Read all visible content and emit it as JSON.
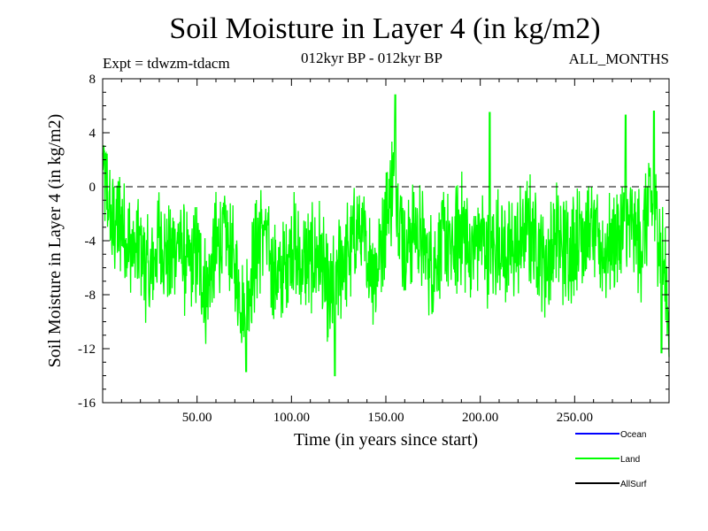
{
  "header": {
    "title": "Soil Moisture in Layer 4 (in kg/m2)",
    "expt": "Expt = tdwzm-tdacm",
    "period": "012kyr BP - 012kyr BP",
    "months": "ALL_MONTHS"
  },
  "colors": {
    "ocean": "#0000ff",
    "land": "#00ff00",
    "allsurf": "#000000",
    "axis": "#000000"
  },
  "chart_data": {
    "type": "line",
    "title": "Soil Moisture in Layer 4 (in kg/m2)",
    "xlabel": "Time (in years since start)",
    "ylabel": "Soil Moisture in Layer 4 (in kg/m2)",
    "xlim": [
      0,
      300
    ],
    "ylim": [
      -16,
      8
    ],
    "x_ticks": [
      50,
      100,
      150,
      200,
      250
    ],
    "x_tick_labels": [
      "50.00",
      "100.00",
      "150.00",
      "200.00",
      "250.00"
    ],
    "y_ticks": [
      -16,
      -12,
      -8,
      -4,
      0,
      4,
      8
    ],
    "y_tick_labels": [
      "-16",
      "-12",
      "-8",
      "-4",
      "0",
      "4",
      "8"
    ],
    "zero_line": true,
    "grid": false,
    "legend_position": "bottom-right",
    "legend": [
      "Ocean",
      "Land",
      "AllSurf"
    ],
    "series": [
      {
        "name": "Land",
        "x": [
          0,
          5,
          10,
          15,
          20,
          25,
          30,
          35,
          40,
          45,
          50,
          55,
          60,
          65,
          70,
          75,
          80,
          85,
          90,
          95,
          100,
          105,
          110,
          115,
          120,
          125,
          130,
          135,
          140,
          145,
          150,
          155,
          160,
          165,
          170,
          175,
          180,
          185,
          190,
          195,
          200,
          205,
          210,
          215,
          220,
          225,
          230,
          235,
          240,
          245,
          250,
          255,
          260,
          265,
          270,
          275,
          280,
          285,
          290,
          295,
          300
        ],
        "values": [
          1.5,
          -3.0,
          -2.5,
          -5.0,
          -4.5,
          -7.0,
          -3.5,
          -5.5,
          -4.0,
          -6.0,
          -5.0,
          -8.0,
          -4.5,
          -3.5,
          -6.0,
          -9.5,
          -5.5,
          -3.0,
          -6.0,
          -7.0,
          -4.0,
          -6.0,
          -5.5,
          -5.0,
          -9.0,
          -6.0,
          -5.0,
          -3.0,
          -5.0,
          -6.5,
          -2.0,
          1.0,
          -5.0,
          -3.0,
          -4.5,
          -6.0,
          -4.0,
          -5.0,
          -3.0,
          -5.0,
          -3.5,
          -5.0,
          -4.0,
          -5.0,
          -4.5,
          -3.0,
          -4.0,
          -6.0,
          -3.5,
          -5.0,
          -4.0,
          -3.0,
          -3.5,
          -5.0,
          -4.0,
          -3.5,
          -3.0,
          -4.5,
          -1.0,
          -3.5,
          -9.5
        ],
        "extremes": [
          {
            "x": 76,
            "y": -13.7
          },
          {
            "x": 123,
            "y": -14.0
          },
          {
            "x": 155,
            "y": 6.8
          },
          {
            "x": 205,
            "y": 5.5
          },
          {
            "x": 277,
            "y": 5.3
          },
          {
            "x": 292,
            "y": 5.6
          },
          {
            "x": 296,
            "y": -12.3
          }
        ]
      }
    ]
  },
  "legend_labels": {
    "ocean": "Ocean",
    "land": "Land",
    "allsurf": "AllSurf"
  }
}
